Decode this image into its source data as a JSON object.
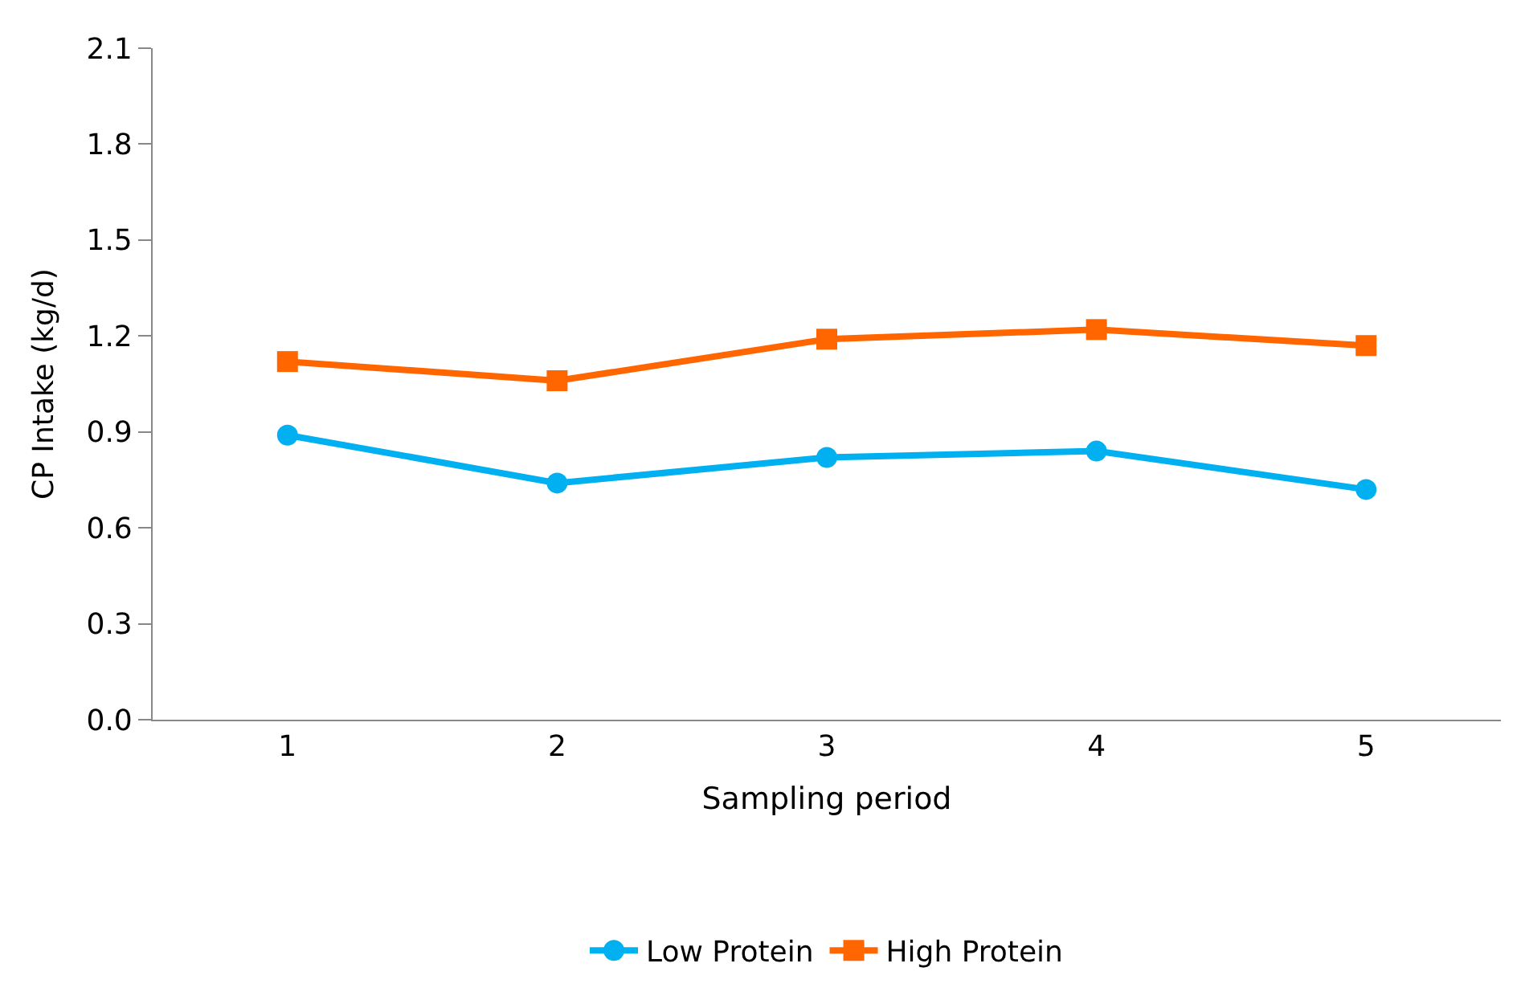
{
  "chart_data": {
    "type": "line",
    "xlabel": "Sampling period",
    "ylabel": "CP Intake (kg/d)",
    "categories": [
      "1",
      "2",
      "3",
      "4",
      "5"
    ],
    "series": [
      {
        "name": "Low Protein",
        "color": "#00b0f0",
        "marker": "circle",
        "values": [
          0.89,
          0.74,
          0.82,
          0.84,
          0.72
        ]
      },
      {
        "name": "High Protein",
        "color": "#ff6600",
        "marker": "square",
        "values": [
          1.12,
          1.06,
          1.19,
          1.22,
          1.17
        ]
      }
    ],
    "ylim": [
      0,
      2.1
    ],
    "yticks": [
      {
        "value": 0,
        "label": "0.0"
      },
      0.3,
      0.6,
      0.9,
      1.2,
      1.5,
      1.8,
      2.1
    ],
    "legend": "bottom",
    "line_style": "solid"
  }
}
